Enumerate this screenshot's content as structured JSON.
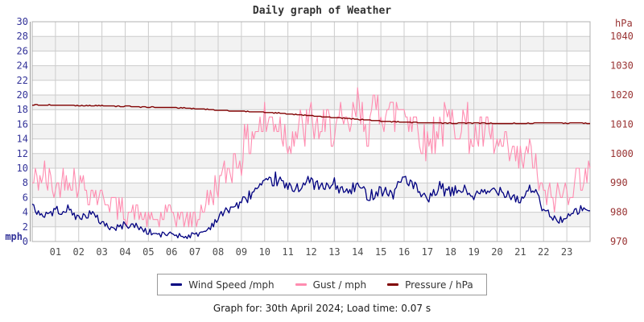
{
  "footer": {
    "text": "Graph for: 30th April 2024; Load time: 0.07 s"
  },
  "chart_data": {
    "type": "line",
    "title": "Daily graph of Weather",
    "x_axis": {
      "range_hours": [
        0,
        24
      ],
      "ticks": [
        "01",
        "02",
        "03",
        "04",
        "05",
        "06",
        "07",
        "08",
        "09",
        "10",
        "11",
        "12",
        "13",
        "14",
        "15",
        "16",
        "17",
        "18",
        "19",
        "20",
        "21",
        "22",
        "23"
      ],
      "color": "#4d4d4d"
    },
    "y_left": {
      "label": "mph",
      "range": [
        0,
        30
      ],
      "tick_step": 2,
      "color": "#333399"
    },
    "y_right": {
      "label": "hPa",
      "ticks": [
        1040,
        1030,
        1020,
        1010,
        1000,
        990,
        980,
        970
      ],
      "range": [
        970,
        1045
      ],
      "hpa_per_mph": 2.5,
      "base_hpa": 970,
      "color": "#993333"
    },
    "style": {
      "band_fill": "#f2f2f2",
      "grid": "#cccccc",
      "border": "#b0b0b0",
      "axis_line": "#999999"
    },
    "series": [
      {
        "name": "Wind Speed /mph",
        "key": "wind",
        "data_name": "wind-series",
        "axis": "left",
        "color": "#000080",
        "width": 1.3,
        "anchor_interval_hours": 0.5,
        "anchors": [
          4.6,
          3.6,
          4.2,
          4.4,
          3.2,
          3.9,
          2.6,
          1.7,
          2.3,
          2.1,
          1.3,
          0.9,
          1.1,
          0.7,
          0.9,
          1.5,
          3.2,
          4.6,
          5.2,
          6.8,
          7.6,
          8.6,
          7.2,
          7.6,
          8.2,
          7.2,
          7.8,
          6.6,
          7.6,
          6.2,
          7.2,
          6.4,
          9.0,
          7.2,
          5.4,
          7.4,
          6.6,
          7.2,
          6.2,
          6.6,
          7.2,
          6.6,
          5.6,
          7.6,
          4.2,
          3.0,
          3.1,
          4.3,
          4.4
        ]
      },
      {
        "name": "Gust / mph",
        "key": "gust",
        "data_name": "gust-series",
        "axis": "left",
        "color": "#ff8cb0",
        "width": 1.1,
        "anchor_interval_hours": 0.5,
        "anchors": [
          8,
          9,
          7,
          9,
          8,
          7,
          6,
          5,
          4,
          4,
          3,
          3,
          4,
          3,
          3,
          5,
          8,
          10,
          12,
          15,
          16,
          17,
          14,
          15,
          16,
          15,
          16,
          15,
          18,
          16,
          19,
          17,
          19,
          16,
          13,
          16,
          16,
          17,
          14,
          15,
          13,
          12,
          11,
          12,
          6,
          6,
          7,
          9,
          9
        ]
      },
      {
        "name": "Pressure / hPa",
        "key": "pressure",
        "data_name": "pressure-series",
        "axis": "right",
        "color": "#800000",
        "width": 1.4,
        "anchor_interval_hours": 1,
        "anchors": [
          1016.6,
          1016.5,
          1016.4,
          1016.3,
          1016.1,
          1015.9,
          1015.7,
          1015.4,
          1014.8,
          1014.4,
          1014.1,
          1013.6,
          1012.9,
          1012.3,
          1011.7,
          1011.1,
          1010.7,
          1010.5,
          1010.4,
          1010.4,
          1010.3,
          1010.3,
          1010.5,
          1010.4,
          1010.3
        ]
      }
    ],
    "render": {
      "seed": 42,
      "upsample_minutes": 4,
      "jitter": {
        "wind": [
          0.35,
          0.07
        ],
        "gust": [
          1.1,
          0.13
        ],
        "pressure": [
          0.1,
          0
        ]
      },
      "quantize": {
        "wind": 0.1,
        "gust": 1,
        "pressure": 0.25
      },
      "min_value": {
        "wind": 0.2,
        "gust": 0.5,
        "pressure": 0
      }
    }
  }
}
